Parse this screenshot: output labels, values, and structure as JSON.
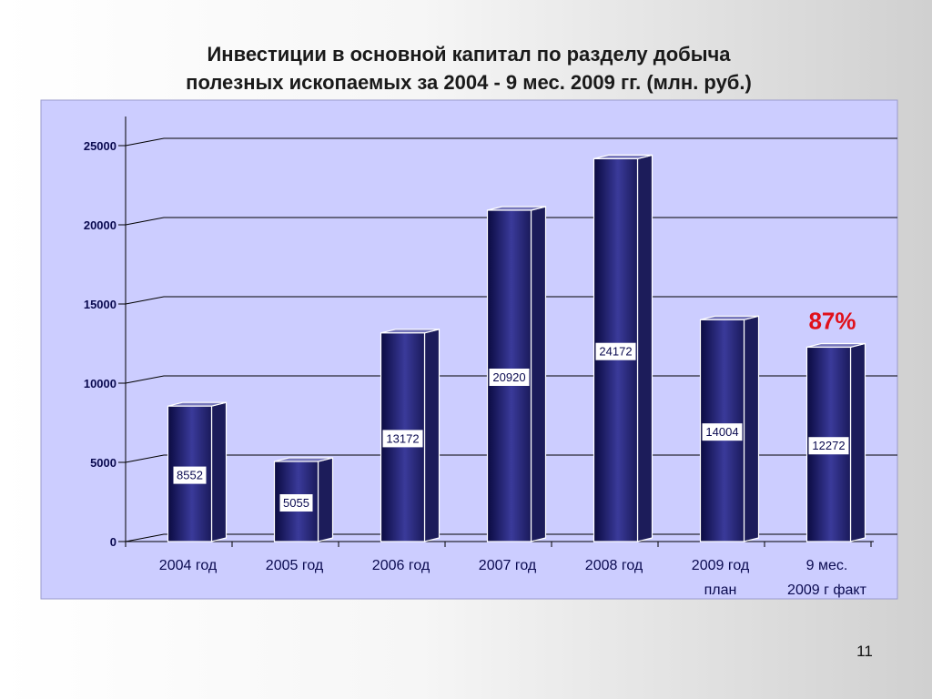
{
  "slide": {
    "title_line1": "Инвестиции в основной капитал по разделу добыча",
    "title_line2": "полезных ископаемых за 2004 - 9 мес. 2009 гг. (млн. руб.)",
    "page_number": "11"
  },
  "chart_data": {
    "type": "bar",
    "categories": [
      [
        "2004 год"
      ],
      [
        "2005 год"
      ],
      [
        "2006 год"
      ],
      [
        "2007 год"
      ],
      [
        "2008 год"
      ],
      [
        "2009 год",
        "план"
      ],
      [
        "9 мес.",
        "2009 г факт"
      ]
    ],
    "values": [
      8552,
      5055,
      13172,
      20920,
      24172,
      14004,
      12272
    ],
    "data_labels": [
      "8552",
      "5055",
      "13172",
      "20920",
      "24172",
      "14004",
      "12272"
    ],
    "ylim": [
      0,
      25000
    ],
    "yticks": [
      0,
      5000,
      10000,
      15000,
      20000,
      25000
    ],
    "ytick_labels": [
      "0",
      "5000",
      "10000",
      "15000",
      "20000",
      "25000"
    ],
    "grid": true,
    "annotation": {
      "text": "87%",
      "category_index": 6,
      "color": "#e0101a"
    },
    "colors": {
      "plot_background": "#cccdff",
      "bar_dark": "#0a0a40",
      "bar_mid": "#3a3a9a",
      "bar_side": "#1c1c5a",
      "bar_top": "#7777bb",
      "axis_text": "#0a0a50",
      "grid": "#000000"
    }
  }
}
